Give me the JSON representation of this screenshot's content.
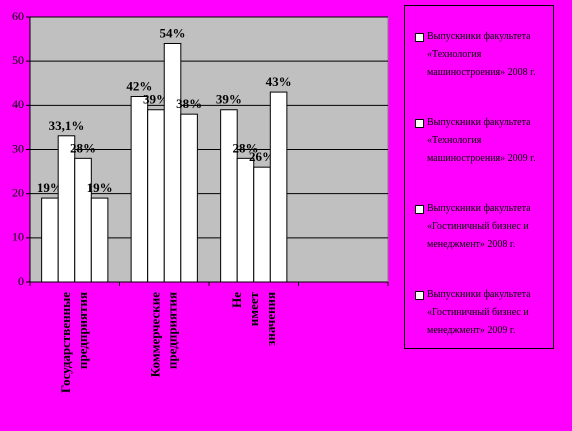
{
  "chart_data": {
    "type": "bar",
    "categories": [
      "Государственные предприятия",
      "Коммерческие предприятия",
      "Не имеет значения",
      null
    ],
    "series": [
      {
        "name": "Выпускники факультета «Технология машиностроения» 2008 г.",
        "color": "#ffffff",
        "values": [
          19,
          42,
          39,
          null
        ],
        "value_labels": [
          "19%",
          "42%",
          "39%",
          null
        ]
      },
      {
        "name": "Выпускники факультета «Технология машиностроения» 2009 г.",
        "color": "#ffffff",
        "values": [
          33.1,
          39,
          28,
          null
        ],
        "value_labels": [
          "33,1%",
          "39%",
          "28%",
          null
        ]
      },
      {
        "name": "Выпускники факультета «Гостиничный бизнес и менеджмент» 2008 г.",
        "color": "#ffffff",
        "values": [
          28,
          54,
          26,
          null
        ],
        "value_labels": [
          "28%",
          "54%",
          "26%",
          null
        ]
      },
      {
        "name": "Выпускники факультета «Гостиничный бизнес и менеджмент» 2009 г.",
        "color": "#ffffff",
        "values": [
          19,
          38,
          43,
          null
        ],
        "value_labels": [
          "19%",
          "38%",
          "43%",
          null
        ]
      }
    ],
    "ylim": [
      0,
      60
    ],
    "yticks": [
      0,
      10,
      20,
      30,
      40,
      50,
      60
    ],
    "grid": true,
    "legend": "right"
  }
}
